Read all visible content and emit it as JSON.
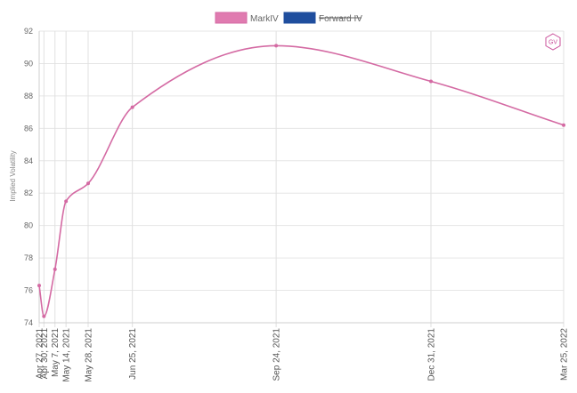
{
  "legend": [
    {
      "label": "MarkIV",
      "color": "#e07bb0",
      "border": "#d46aa3",
      "strikethrough": false
    },
    {
      "label": "Forward IV",
      "color": "#1f4e9e",
      "border": "#1f4e9e",
      "strikethrough": true
    }
  ],
  "logo": {
    "text": "GV",
    "icon": "gv-hexagon-logo-icon"
  },
  "chart_data": {
    "type": "line",
    "title": "",
    "xlabel": "",
    "ylabel": "Implied Volatility",
    "ylim": [
      74,
      92
    ],
    "yticks": [
      74,
      76,
      78,
      80,
      82,
      84,
      86,
      88,
      90,
      92
    ],
    "x_range": [
      "2021-04-27",
      "2022-03-25"
    ],
    "grid": true,
    "legend_position": "top",
    "xticks": [
      {
        "date": "2021-04-27",
        "label": "Apr 27, 2021"
      },
      {
        "date": "2021-04-30",
        "label": "Apr 30, 2021"
      },
      {
        "date": "2021-05-07",
        "label": "May 7, 2021"
      },
      {
        "date": "2021-05-14",
        "label": "May 14, 2021"
      },
      {
        "date": "2021-05-28",
        "label": "May 28, 2021"
      },
      {
        "date": "2021-06-25",
        "label": "Jun 25, 2021"
      },
      {
        "date": "2021-09-24",
        "label": "Sep 24, 2021"
      },
      {
        "date": "2021-12-31",
        "label": "Dec 31, 2021"
      },
      {
        "date": "2022-03-25",
        "label": "Mar 25, 2022"
      }
    ],
    "series": [
      {
        "name": "MarkIV",
        "color": "#d46aa3",
        "points": [
          {
            "x": "2021-04-27",
            "y": 76.3
          },
          {
            "x": "2021-04-30",
            "y": 74.4
          },
          {
            "x": "2021-05-07",
            "y": 77.3
          },
          {
            "x": "2021-05-14",
            "y": 81.5
          },
          {
            "x": "2021-05-28",
            "y": 82.6
          },
          {
            "x": "2021-06-25",
            "y": 87.3
          },
          {
            "x": "2021-09-24",
            "y": 91.1
          },
          {
            "x": "2021-12-31",
            "y": 88.9
          },
          {
            "x": "2022-03-25",
            "y": 86.2
          }
        ]
      }
    ]
  }
}
